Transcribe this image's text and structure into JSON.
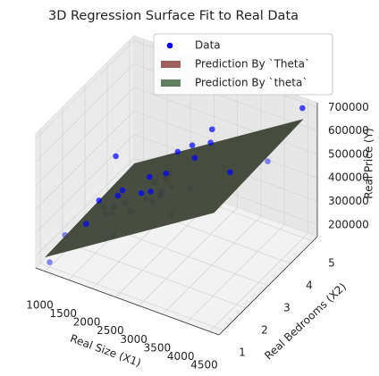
{
  "chart_data": {
    "type": "scatter3d",
    "title": "3D Regression Surface Fit to Real Data",
    "xlabel": "Real Size (X1)",
    "ylabel": "Real Bedrooms (X2)",
    "zlabel": "Real Price (Y)",
    "xlim": [
      800,
      4700
    ],
    "ylim": [
      0.8,
      5.2
    ],
    "zlim": [
      150000,
      720000
    ],
    "xticks": [
      1000,
      1500,
      2000,
      2500,
      3000,
      3500,
      4000,
      4500
    ],
    "yticks": [
      1,
      2,
      3,
      4,
      5
    ],
    "zticks": [
      200000,
      300000,
      400000,
      500000,
      600000,
      700000
    ],
    "grid": true,
    "legend": "upper right",
    "series": [
      {
        "name": "Data",
        "color": "#0000ff",
        "kind": "scatter",
        "x": [
          852,
          1000,
          1100,
          1200,
          1236,
          1300,
          1380,
          1400,
          1437,
          1458,
          1500,
          1600,
          1650,
          1700,
          1767,
          1811,
          1888,
          1940,
          1962,
          2000,
          2040,
          2100,
          2132,
          2162,
          2200,
          2238,
          2300,
          2400,
          2526,
          2567,
          2609,
          2637,
          3000,
          3031,
          3137,
          3890,
          4215,
          4478
        ],
        "y": [
          2,
          1,
          3,
          3,
          3,
          2,
          3,
          3,
          3,
          3,
          3,
          3,
          3,
          4,
          3,
          4,
          2,
          4,
          4,
          3,
          4,
          3,
          4,
          4,
          3,
          3,
          4,
          3,
          3,
          4,
          4,
          3,
          4,
          4,
          3,
          3,
          4,
          5
        ],
        "z": [
          179900,
          169900,
          249900,
          229900,
          199900,
          259900,
          212000,
          242500,
          249900,
          464500,
          299900,
          329900,
          280000,
          299000,
          252900,
          285900,
          255000,
          239999,
          259900,
          347000,
          314900,
          329999,
          345000,
          287000,
          368500,
          329900,
          449900,
          369000,
          469000,
          314000,
          499998,
          299900,
          539900,
          599000,
          579900,
          573900,
          549000,
          699900
        ]
      },
      {
        "name": "Prediction By `Theta`",
        "color": "#a06060",
        "kind": "surface",
        "x": [
          900,
          4500
        ],
        "y": [
          1,
          5
        ],
        "z": [
          [
            184000,
            203000
          ],
          [
            636000,
            655000
          ]
        ]
      },
      {
        "name": "Prediction By `theta`",
        "color": "#5f7f5f",
        "kind": "surface",
        "x": [
          900,
          4500
        ],
        "y": [
          1,
          5
        ],
        "z": [
          [
            184000,
            203000
          ],
          [
            636000,
            655000
          ]
        ]
      }
    ]
  }
}
